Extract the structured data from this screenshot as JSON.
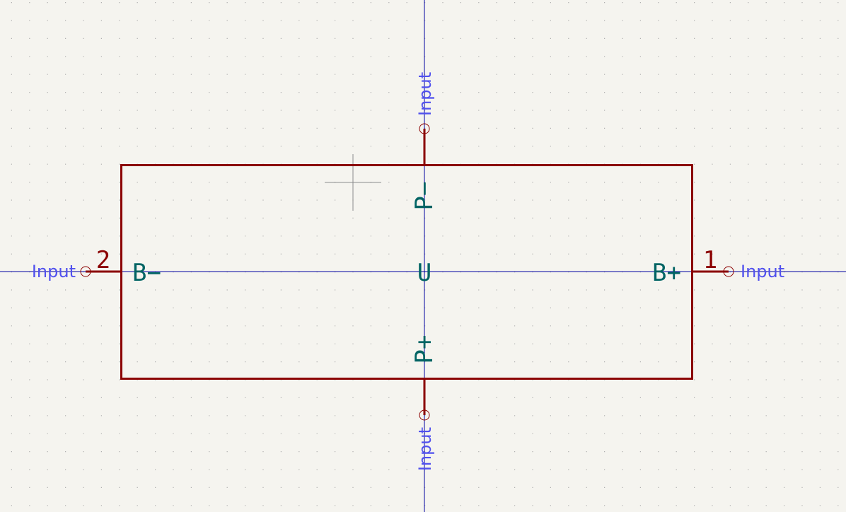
{
  "colors": {
    "background": "#f5f4ef",
    "grid_dot": "#b0b0b0",
    "body_outline": "#8b0000",
    "pin_line": "#8b0000",
    "pin_name": "#006464",
    "pin_number": "#8b0000",
    "electrical_type": "#5050ee",
    "axis_line": "#0000a0",
    "cursor": "#8c8c8c"
  },
  "symbol": {
    "reference": "U",
    "pins": {
      "left": {
        "name": "B−",
        "number": "2",
        "type": "Input"
      },
      "right": {
        "name": "B+",
        "number": "1",
        "type": "Input"
      },
      "top": {
        "name": "P−",
        "number": "",
        "type": "Input"
      },
      "bottom": {
        "name": "P+",
        "number": "",
        "type": "Input"
      }
    }
  }
}
